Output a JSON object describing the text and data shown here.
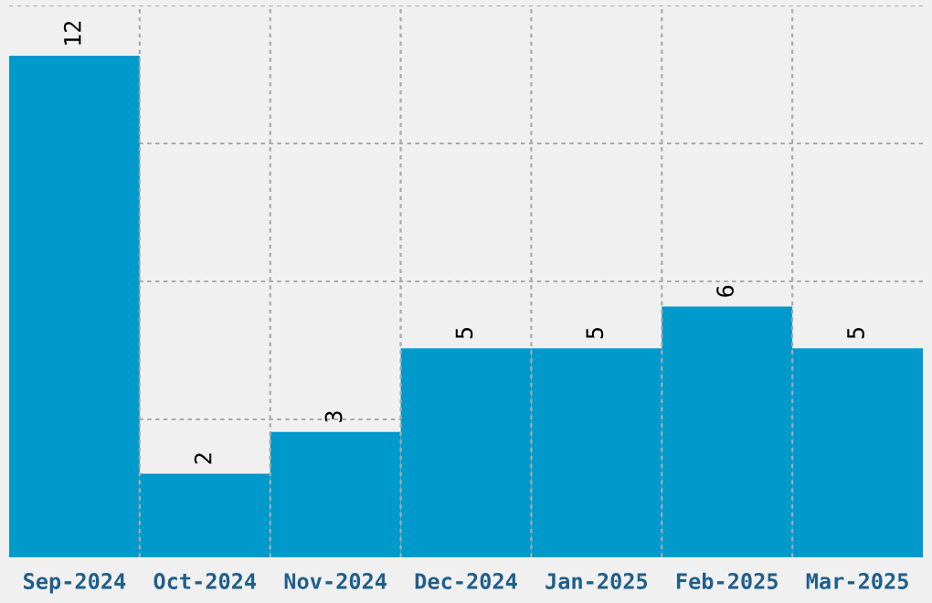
{
  "chart_data": {
    "type": "bar",
    "categories": [
      "Sep-2024",
      "Oct-2024",
      "Nov-2024",
      "Dec-2024",
      "Jan-2025",
      "Feb-2025",
      "Mar-2025"
    ],
    "values": [
      12,
      2,
      3,
      5,
      5,
      6,
      5
    ],
    "color": "#0099cc",
    "data_labels": true,
    "grid": true,
    "tick_labels": "x",
    "ylim": [
      0,
      13.2
    ],
    "yticks": [
      {
        "value": 3.3,
        "label": null
      },
      {
        "value": 6.6,
        "label": null
      },
      {
        "value": 9.9,
        "label": null
      },
      {
        "value": 13.2,
        "label": null
      }
    ]
  }
}
